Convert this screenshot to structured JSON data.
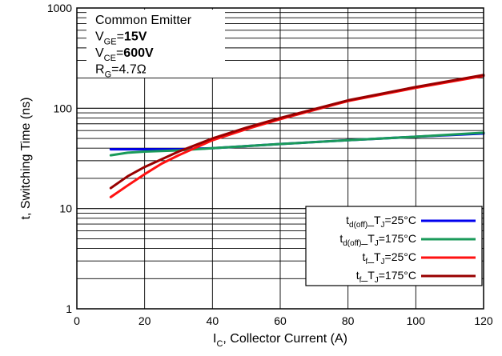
{
  "chart_data": {
    "type": "line",
    "x_scale": "linear",
    "y_scale": "log",
    "xlim": [
      0,
      120
    ],
    "ylim": [
      1,
      1000
    ],
    "x_ticks": [
      "0",
      "20",
      "40",
      "60",
      "80",
      "100",
      "120"
    ],
    "y_ticks": [
      "1",
      "10",
      "100",
      "1000"
    ],
    "xlabel": {
      "main": "I",
      "sub": "C",
      "rest": ", Collector Current (A)"
    },
    "ylabel": "t, Switching Time (ns)",
    "conditions": [
      {
        "main": "Common Emitter",
        "sub": "",
        "eq": "",
        "value": "",
        "bold": false
      },
      {
        "main": "V",
        "sub": "GE",
        "eq": "=",
        "value": "15V",
        "bold": true
      },
      {
        "main": "V",
        "sub": "CE",
        "eq": "=",
        "value": "600V",
        "bold": true
      },
      {
        "main": "R",
        "sub": "G",
        "eq": "=",
        "value": "4.7Ω",
        "bold": false
      }
    ],
    "legend_position": "bottom-right",
    "series": [
      {
        "name": "td(off)_TJ=25°C",
        "label_main": "t",
        "label_sub": "d(off)",
        "label_mid": "_T",
        "label_sub2": "J",
        "label_tail": "=25°C",
        "color": "#0000ee",
        "x": [
          10,
          20,
          30,
          40,
          60,
          80,
          100,
          120
        ],
        "y": [
          39,
          39,
          39,
          40,
          44,
          48,
          52,
          56
        ]
      },
      {
        "name": "td(off)_TJ=175°C",
        "label_main": "t",
        "label_sub": "d(off)",
        "label_mid": "_T",
        "label_sub2": "J",
        "label_tail": "=175°C",
        "color": "#1a9a5a",
        "x": [
          10,
          15,
          20,
          30,
          40,
          60,
          80,
          100,
          120
        ],
        "y": [
          34,
          36,
          37,
          38,
          40,
          44,
          48,
          52,
          57
        ]
      },
      {
        "name": "tf_TJ=25°C",
        "label_main": "t",
        "label_sub": "f",
        "label_mid": "_T",
        "label_sub2": "J",
        "label_tail": "=25°C",
        "color": "#ff1111",
        "x": [
          10,
          15,
          20,
          25,
          30,
          40,
          50,
          60,
          80,
          100,
          120
        ],
        "y": [
          13,
          17,
          22,
          28,
          34,
          48,
          62,
          78,
          118,
          160,
          210
        ]
      },
      {
        "name": "tf_TJ=175°C",
        "label_main": "t",
        "label_sub": "f",
        "label_mid": "_T",
        "label_sub2": "J",
        "label_tail": "=175°C",
        "color": "#990000",
        "x": [
          10,
          15,
          20,
          25,
          30,
          40,
          50,
          60,
          80,
          100,
          120
        ],
        "y": [
          16,
          21,
          26,
          31,
          37,
          50,
          64,
          80,
          120,
          163,
          215
        ]
      }
    ]
  }
}
